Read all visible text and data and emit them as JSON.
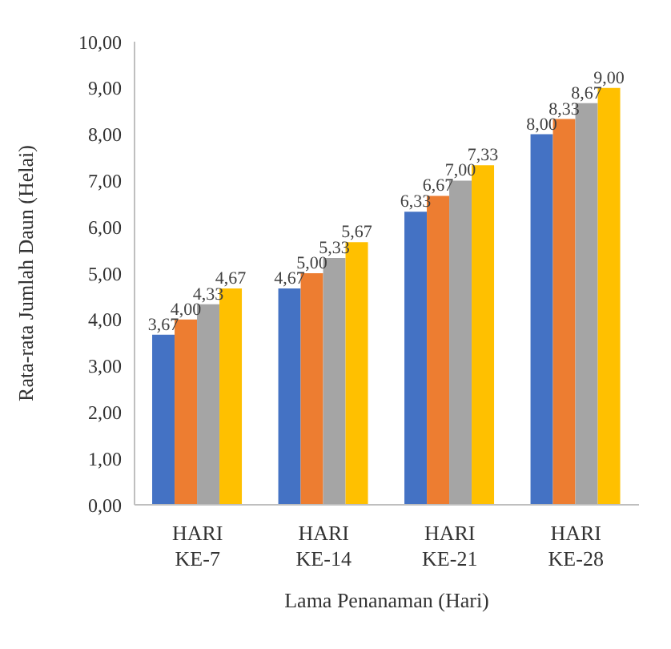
{
  "chart_data": {
    "type": "bar",
    "xlabel": "Lama Penanaman (Hari)",
    "ylabel": "Rata-rata Jumlah Daun (Helai)",
    "categories": [
      "HARI KE-7",
      "HARI KE-14",
      "HARI KE-21",
      "HARI KE-28"
    ],
    "series": [
      {
        "color": "#4472c4",
        "values": [
          3.67,
          4.67,
          6.33,
          8.0
        ],
        "value_labels": [
          "3,67",
          "4,67",
          "6,33",
          "8,00"
        ]
      },
      {
        "color": "#ed7d31",
        "values": [
          4.0,
          5.0,
          6.67,
          8.33
        ],
        "value_labels": [
          "4,00",
          "5,00",
          "6,67",
          "8,33"
        ]
      },
      {
        "color": "#a5a5a5",
        "values": [
          4.33,
          5.33,
          7.0,
          8.67
        ],
        "value_labels": [
          "4,33",
          "5,33",
          "7,00",
          "8,67"
        ]
      },
      {
        "color": "#ffc000",
        "values": [
          4.67,
          5.67,
          7.33,
          9.0
        ],
        "value_labels": [
          "4,67",
          "5,67",
          "7,33",
          "9,00"
        ]
      }
    ],
    "ylim": [
      0,
      10
    ],
    "yticks": [
      {
        "value": 0,
        "label": "0,00"
      },
      {
        "value": 1,
        "label": "1,00"
      },
      {
        "value": 2,
        "label": "2,00"
      },
      {
        "value": 3,
        "label": "3,00"
      },
      {
        "value": 4,
        "label": "4,00"
      },
      {
        "value": 5,
        "label": "5,00"
      },
      {
        "value": 6,
        "label": "6,00"
      },
      {
        "value": 7,
        "label": "7,00"
      },
      {
        "value": 8,
        "label": "8,00"
      },
      {
        "value": 9,
        "label": "9,00"
      },
      {
        "value": 10,
        "label": "10,00"
      }
    ]
  }
}
